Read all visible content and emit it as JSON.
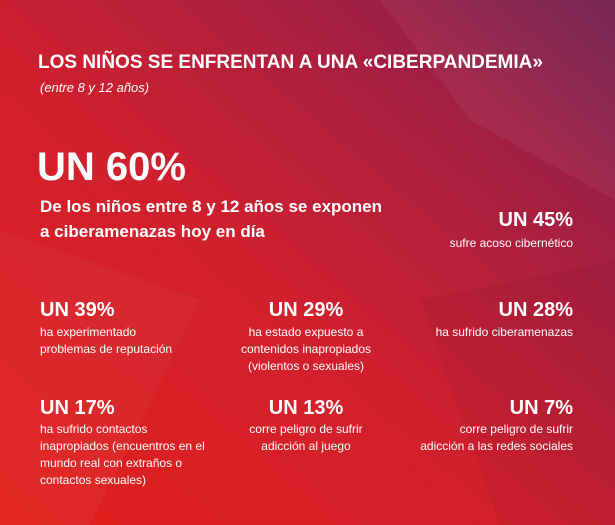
{
  "header": {
    "title": "LOS NIÑOS SE ENFRENTAN A UNA «CIBERPANDEMIA»",
    "subtitle": "(entre 8 y 12 años)"
  },
  "main_stat": {
    "headline": "UN 60%",
    "lines": [
      "De los niños entre 8 y 12 años se exponen",
      "a ciberamenazas hoy en día"
    ]
  },
  "stats": [
    {
      "headline": "UN 45%",
      "lines": [
        "sufre acoso cibernético"
      ]
    },
    {
      "headline": "UN 39%",
      "lines": [
        "ha experimentado",
        "problemas de reputación"
      ]
    },
    {
      "headline": "UN 29%",
      "lines": [
        "ha estado expuesto a",
        "contenidos inapropiados",
        "(violentos o sexuales)"
      ]
    },
    {
      "headline": "UN 28%",
      "lines": [
        "ha sufrido ciberamenazas"
      ]
    },
    {
      "headline": "UN 17%",
      "lines": [
        "ha sufrido contactos",
        "inapropiados (encuentros en el",
        "mundo real con extraños o",
        "contactos sexuales)"
      ]
    },
    {
      "headline": "UN 13%",
      "lines": [
        "corre peligro de sufrir",
        "adicción al juego"
      ]
    },
    {
      "headline": "UN 7%",
      "lines": [
        "corre peligro de sufrir",
        "adicción a las redes sociales"
      ]
    }
  ]
}
